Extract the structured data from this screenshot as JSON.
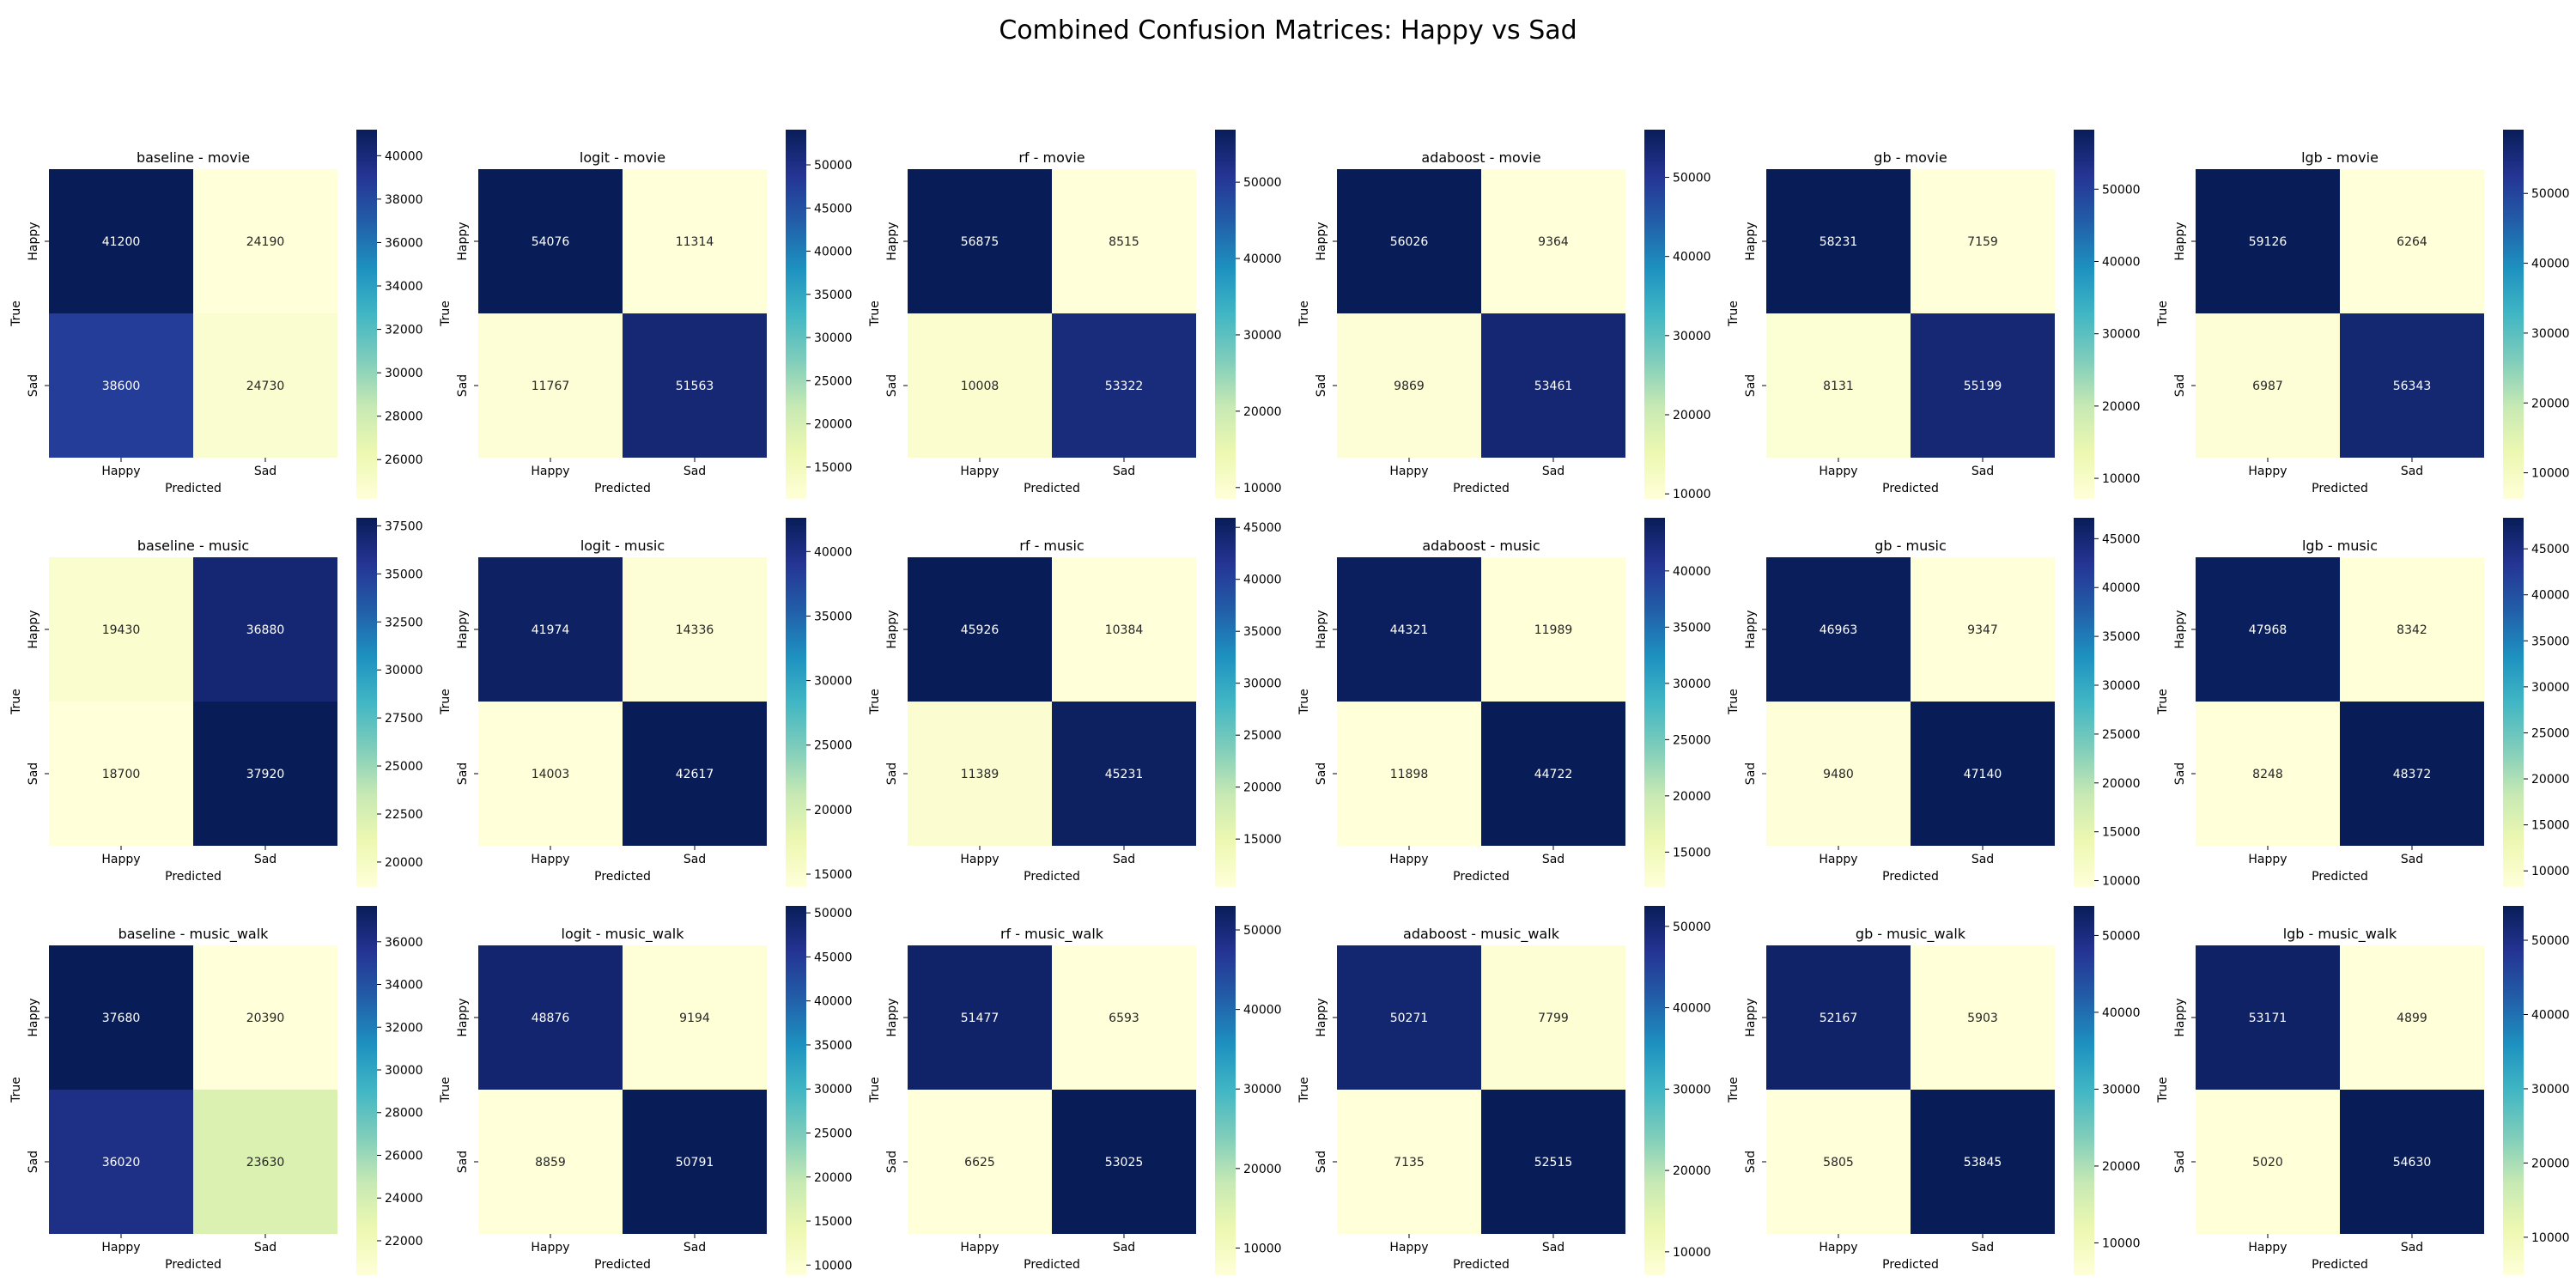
{
  "title": "Combined Confusion Matrices: Happy vs Sad",
  "chart_data": {
    "type": "heatmap",
    "title": "Combined Confusion Matrices: Happy vs Sad",
    "colormap": "YlGnBu",
    "xlabel": "Predicted",
    "ylabel": "True",
    "labels": [
      "Happy",
      "Sad"
    ],
    "panels": [
      {
        "title": "baseline - movie",
        "matrix": [
          [
            41200,
            24190
          ],
          [
            38600,
            24730
          ]
        ],
        "cbar_ticks": [
          26000,
          28000,
          30000,
          32000,
          34000,
          36000,
          38000,
          40000
        ]
      },
      {
        "title": "logit - movie",
        "matrix": [
          [
            54076,
            11314
          ],
          [
            11767,
            51563
          ]
        ],
        "cbar_ticks": [
          15000,
          20000,
          25000,
          30000,
          35000,
          40000,
          45000,
          50000
        ]
      },
      {
        "title": "rf - movie",
        "matrix": [
          [
            56875,
            8515
          ],
          [
            10008,
            53322
          ]
        ],
        "cbar_ticks": [
          10000,
          20000,
          30000,
          40000,
          50000
        ]
      },
      {
        "title": "adaboost - movie",
        "matrix": [
          [
            56026,
            9364
          ],
          [
            9869,
            53461
          ]
        ],
        "cbar_ticks": [
          10000,
          20000,
          30000,
          40000,
          50000
        ]
      },
      {
        "title": "gb - movie",
        "matrix": [
          [
            58231,
            7159
          ],
          [
            8131,
            55199
          ]
        ],
        "cbar_ticks": [
          10000,
          20000,
          30000,
          40000,
          50000
        ]
      },
      {
        "title": "lgb - movie",
        "matrix": [
          [
            59126,
            6264
          ],
          [
            6987,
            56343
          ]
        ],
        "cbar_ticks": [
          10000,
          20000,
          30000,
          40000,
          50000
        ]
      },
      {
        "title": "baseline - music",
        "matrix": [
          [
            19430,
            36880
          ],
          [
            18700,
            37920
          ]
        ],
        "cbar_ticks": [
          20000,
          22500,
          25000,
          27500,
          30000,
          32500,
          35000,
          37500
        ]
      },
      {
        "title": "logit - music",
        "matrix": [
          [
            41974,
            14336
          ],
          [
            14003,
            42617
          ]
        ],
        "cbar_ticks": [
          15000,
          20000,
          25000,
          30000,
          35000,
          40000
        ]
      },
      {
        "title": "rf - music",
        "matrix": [
          [
            45926,
            10384
          ],
          [
            11389,
            45231
          ]
        ],
        "cbar_ticks": [
          15000,
          20000,
          25000,
          30000,
          35000,
          40000,
          45000
        ]
      },
      {
        "title": "adaboost - music",
        "matrix": [
          [
            44321,
            11989
          ],
          [
            11898,
            44722
          ]
        ],
        "cbar_ticks": [
          15000,
          20000,
          25000,
          30000,
          35000,
          40000
        ]
      },
      {
        "title": "gb - music",
        "matrix": [
          [
            46963,
            9347
          ],
          [
            9480,
            47140
          ]
        ],
        "cbar_ticks": [
          10000,
          15000,
          20000,
          25000,
          30000,
          35000,
          40000,
          45000
        ]
      },
      {
        "title": "lgb - music",
        "matrix": [
          [
            47968,
            8342
          ],
          [
            8248,
            48372
          ]
        ],
        "cbar_ticks": [
          10000,
          15000,
          20000,
          25000,
          30000,
          35000,
          40000,
          45000
        ]
      },
      {
        "title": "baseline - music_walk",
        "matrix": [
          [
            37680,
            20390
          ],
          [
            36020,
            23630
          ]
        ],
        "cbar_ticks": [
          22000,
          24000,
          26000,
          28000,
          30000,
          32000,
          34000,
          36000
        ]
      },
      {
        "title": "logit - music_walk",
        "matrix": [
          [
            48876,
            9194
          ],
          [
            8859,
            50791
          ]
        ],
        "cbar_ticks": [
          10000,
          15000,
          20000,
          25000,
          30000,
          35000,
          40000,
          45000,
          50000
        ]
      },
      {
        "title": "rf - music_walk",
        "matrix": [
          [
            51477,
            6593
          ],
          [
            6625,
            53025
          ]
        ],
        "cbar_ticks": [
          10000,
          20000,
          30000,
          40000,
          50000
        ]
      },
      {
        "title": "adaboost - music_walk",
        "matrix": [
          [
            50271,
            7799
          ],
          [
            7135,
            52515
          ]
        ],
        "cbar_ticks": [
          10000,
          20000,
          30000,
          40000,
          50000
        ]
      },
      {
        "title": "gb - music_walk",
        "matrix": [
          [
            52167,
            5903
          ],
          [
            5805,
            53845
          ]
        ],
        "cbar_ticks": [
          10000,
          20000,
          30000,
          40000,
          50000
        ]
      },
      {
        "title": "lgb - music_walk",
        "matrix": [
          [
            53171,
            4899
          ],
          [
            5020,
            54630
          ]
        ],
        "cbar_ticks": [
          10000,
          20000,
          30000,
          40000,
          50000
        ]
      }
    ]
  }
}
